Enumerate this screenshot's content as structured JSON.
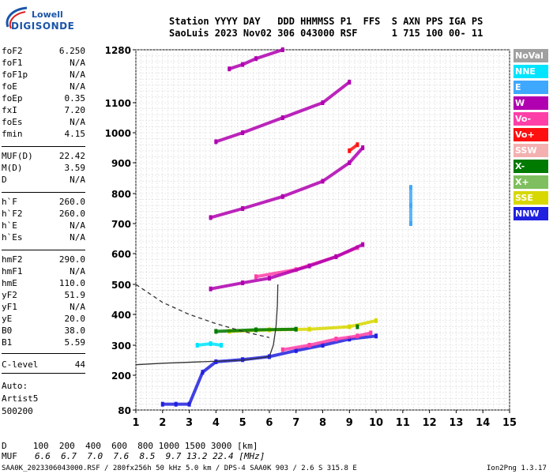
{
  "logo": {
    "line1": "Lowell",
    "line2": "DIGISONDE"
  },
  "header": {
    "line1": "Station YYYY DAY   DDD HHMMSS P1  FFS  S AXN PPS IGA PS",
    "line2": "SaoLuis 2023 Nov02 306 043000 RSF      1 715 100 00- 11"
  },
  "params": [
    {
      "name": "foF2",
      "value": "6.250"
    },
    {
      "name": "foF1",
      "value": "N/A"
    },
    {
      "name": "foF1p",
      "value": "N/A"
    },
    {
      "name": "foE",
      "value": "N/A"
    },
    {
      "name": "foEp",
      "value": "0.35"
    },
    {
      "name": "fxI",
      "value": "7.20"
    },
    {
      "name": "foEs",
      "value": "N/A"
    },
    {
      "name": "fmin",
      "value": "4.15"
    },
    {
      "name": "MUF(D)",
      "value": "22.42"
    },
    {
      "name": "M(D)",
      "value": "3.59"
    },
    {
      "name": "D",
      "value": "N/A"
    },
    {
      "name": "h`F",
      "value": "260.0"
    },
    {
      "name": "h`F2",
      "value": "260.0"
    },
    {
      "name": "h`E",
      "value": "N/A"
    },
    {
      "name": "h`Es",
      "value": "N/A"
    },
    {
      "name": "hmF2",
      "value": "290.0"
    },
    {
      "name": "hmF1",
      "value": "N/A"
    },
    {
      "name": "hmE",
      "value": "110.0"
    },
    {
      "name": "yF2",
      "value": "51.9"
    },
    {
      "name": "yF1",
      "value": "N/A"
    },
    {
      "name": "yE",
      "value": "20.0"
    },
    {
      "name": "B0",
      "value": "38.0"
    },
    {
      "name": "B1",
      "value": "5.59"
    },
    {
      "name": "C-level",
      "value": "44"
    }
  ],
  "auto": {
    "line1": "Auto:",
    "line2": "Artist5",
    "line3": "500200"
  },
  "footer": {
    "d_row": "D     100  200  400  600  800 1000 1500 3000 [km]",
    "muf_label": "MUF",
    "muf_values": "6.6  6.7  7.0  7.6  8.5  9.7 13.2 22.4 [MHz]",
    "info": "SAA0K_2023306043000.RSF / 280fx256h 50 kHz 5.0 km / DPS-4 SAA0K 903 / 2.6 S 315.8 E",
    "version": "Ion2Png 1.3.17"
  },
  "legend": [
    {
      "label": "NoVal",
      "color": "#a0a0a0"
    },
    {
      "label": "NNE",
      "color": "#00e5ff"
    },
    {
      "label": "E",
      "color": "#3ea8ff"
    },
    {
      "label": "W",
      "color": "#b000b0"
    },
    {
      "label": "Vo-",
      "color": "#ff3fa8"
    },
    {
      "label": "Vo+",
      "color": "#ff1010"
    },
    {
      "label": "SSW",
      "color": "#f4b0b0"
    },
    {
      "label": "X-",
      "color": "#007a00"
    },
    {
      "label": "X+",
      "color": "#7fbf5f"
    },
    {
      "label": "SSE",
      "color": "#d8d800"
    },
    {
      "label": "NNW",
      "color": "#2020e0"
    }
  ],
  "chart_data": {
    "type": "scatter",
    "xlabel": "",
    "ylabel": "",
    "xlim": [
      1,
      15
    ],
    "ylim": [
      80,
      1280
    ],
    "x_ticks": [
      "1",
      "2",
      "3",
      "4",
      "5",
      "6",
      "7",
      "8",
      "9",
      "10",
      "11",
      "12",
      "13",
      "14",
      "15"
    ],
    "y_ticks": [
      "80",
      "200",
      "300",
      "400",
      "500",
      "600",
      "700",
      "800",
      "900",
      "1000",
      "1100",
      "1280"
    ],
    "grid": true,
    "series": [
      {
        "name": "NNW",
        "points": [
          [
            2.0,
            100
          ],
          [
            2.5,
            100
          ],
          [
            3.0,
            100
          ],
          [
            3.5,
            210
          ],
          [
            4.0,
            245
          ],
          [
            5.0,
            252
          ],
          [
            6.0,
            262
          ],
          [
            7.0,
            282
          ],
          [
            8.0,
            300
          ],
          [
            9.0,
            320
          ],
          [
            10.0,
            330
          ]
        ]
      },
      {
        "name": "NNE",
        "points": [
          [
            3.3,
            300
          ],
          [
            3.8,
            305
          ],
          [
            4.2,
            300
          ]
        ]
      },
      {
        "name": "Vo-",
        "points": [
          [
            6.5,
            285
          ],
          [
            7.5,
            300
          ],
          [
            8.5,
            320
          ],
          [
            9.3,
            330
          ],
          [
            9.8,
            340
          ],
          [
            5.5,
            525
          ],
          [
            7.0,
            548
          ],
          [
            8.5,
            590
          ],
          [
            9.3,
            620
          ]
        ]
      },
      {
        "name": "SSE",
        "points": [
          [
            4.5,
            345
          ],
          [
            6.0,
            350
          ],
          [
            7.5,
            352
          ],
          [
            9.0,
            360
          ],
          [
            10.0,
            380
          ]
        ]
      },
      {
        "name": "X-",
        "points": [
          [
            4.0,
            345
          ],
          [
            5.5,
            350
          ],
          [
            7.0,
            352
          ],
          [
            9.3,
            360
          ]
        ]
      },
      {
        "name": "W",
        "points": [
          [
            3.8,
            485
          ],
          [
            5.0,
            505
          ],
          [
            6.0,
            520
          ],
          [
            7.5,
            560
          ],
          [
            8.5,
            590
          ],
          [
            9.5,
            630
          ],
          [
            3.8,
            720
          ],
          [
            5.0,
            750
          ],
          [
            6.5,
            790
          ],
          [
            8.0,
            840
          ],
          [
            9.0,
            900
          ],
          [
            9.5,
            950
          ],
          [
            4.0,
            970
          ],
          [
            5.0,
            1000
          ],
          [
            6.5,
            1050
          ],
          [
            8.0,
            1100
          ],
          [
            9.0,
            1170
          ],
          [
            4.5,
            1215
          ],
          [
            5.0,
            1230
          ],
          [
            5.5,
            1250
          ],
          [
            6.5,
            1280
          ]
        ]
      },
      {
        "name": "Vo+",
        "points": [
          [
            9.0,
            940
          ],
          [
            9.3,
            960
          ]
        ]
      },
      {
        "name": "E",
        "points": [
          [
            11.3,
            700
          ],
          [
            11.3,
            760
          ],
          [
            11.3,
            820
          ]
        ]
      }
    ],
    "lines": [
      {
        "name": "profile",
        "style": "solid",
        "points": [
          [
            1.0,
            235
          ],
          [
            2.0,
            240
          ],
          [
            3.5,
            245
          ],
          [
            5.0,
            250
          ],
          [
            6.0,
            262
          ],
          [
            6.15,
            300
          ],
          [
            6.25,
            360
          ],
          [
            6.3,
            430
          ],
          [
            6.32,
            500
          ]
        ]
      },
      {
        "name": "trace",
        "style": "dashed",
        "points": [
          [
            1.0,
            500
          ],
          [
            2.0,
            440
          ],
          [
            3.0,
            400
          ],
          [
            4.0,
            370
          ],
          [
            5.0,
            345
          ],
          [
            6.0,
            325
          ]
        ]
      }
    ]
  }
}
